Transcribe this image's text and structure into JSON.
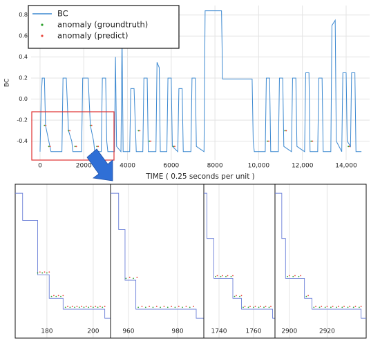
{
  "chart_data": [
    {
      "type": "line",
      "ylabel": "BC",
      "xlabel": "TIME ( 0.25 seconds per unit )",
      "grid": true,
      "legend": "upper left",
      "xlim": [
        -410,
        15075
      ],
      "ylim": [
        -0.58,
        0.89
      ],
      "xticks": [
        0,
        2000,
        4000,
        6000,
        8000,
        {
          "value": 10000,
          "label": "10,000"
        },
        {
          "value": 12000,
          "label": "12,000"
        },
        {
          "value": 14000,
          "label": "14,000"
        }
      ],
      "yticks": [
        -0.4,
        -0.2,
        {
          "value": 0,
          "label": "0.0"
        },
        0.2,
        0.4,
        0.6,
        0.8
      ],
      "series": [
        {
          "name": "BC",
          "kind": "line",
          "color": "#3b88d0",
          "x": [
            0,
            50,
            100,
            200,
            250,
            400,
            500,
            1000,
            1050,
            1200,
            1300,
            1450,
            1500,
            1900,
            1950,
            2200,
            2300,
            2450,
            2500,
            2800,
            2850,
            3000,
            3050,
            3100,
            3400,
            3450,
            3500,
            3700,
            3750,
            3800,
            4100,
            4150,
            4300,
            4400,
            4700,
            4750,
            4900,
            4950,
            5300,
            5350,
            5450,
            5500,
            5800,
            5850,
            6000,
            6050,
            6300,
            6350,
            6500,
            6550,
            6900,
            6950,
            7100,
            7150,
            7500,
            7550,
            8300,
            8350,
            9700,
            9750,
            9800,
            10300,
            10350,
            10500,
            10550,
            10900,
            10950,
            11100,
            11150,
            11500,
            11550,
            11700,
            11750,
            12100,
            12150,
            12300,
            12350,
            12700,
            12750,
            12900,
            12950,
            13300,
            13350,
            13500,
            13550,
            13800,
            13850,
            14000,
            14050,
            14200,
            14250,
            14400,
            14450,
            14700
          ],
          "values": [
            -0.5,
            0.0,
            0.2,
            0.2,
            -0.25,
            -0.4,
            -0.5,
            -0.5,
            0.2,
            0.2,
            -0.3,
            -0.4,
            -0.5,
            -0.5,
            0.2,
            0.2,
            -0.25,
            -0.4,
            -0.5,
            -0.5,
            0.2,
            0.2,
            -0.4,
            -0.5,
            -0.5,
            0.4,
            -0.45,
            -0.5,
            0.6,
            -0.5,
            -0.5,
            0.1,
            0.1,
            -0.5,
            -0.5,
            0.2,
            0.2,
            -0.5,
            -0.5,
            0.35,
            0.3,
            -0.5,
            -0.5,
            0.2,
            0.2,
            -0.45,
            -0.5,
            0.1,
            0.1,
            -0.5,
            -0.5,
            0.2,
            0.2,
            -0.45,
            -0.5,
            0.84,
            0.84,
            0.19,
            0.19,
            -0.4,
            -0.5,
            -0.5,
            0.2,
            0.2,
            -0.5,
            -0.5,
            0.2,
            0.2,
            -0.45,
            -0.5,
            0.2,
            0.2,
            -0.45,
            -0.5,
            0.25,
            0.25,
            -0.5,
            -0.5,
            0.2,
            0.2,
            -0.5,
            -0.5,
            0.7,
            0.75,
            -0.4,
            -0.5,
            0.25,
            0.25,
            -0.4,
            -0.45,
            0.25,
            0.25,
            -0.5,
            -0.5
          ]
        },
        {
          "name": "anomaly (groundtruth)",
          "kind": "scatter",
          "color": "#2ca02c",
          "x": [
            200,
            400,
            1300,
            1600,
            2300,
            2600,
            4500,
            5000,
            6100,
            10400,
            11200,
            12400,
            14100
          ],
          "values": [
            -0.25,
            -0.45,
            -0.3,
            -0.45,
            -0.25,
            -0.45,
            -0.3,
            -0.4,
            -0.45,
            -0.4,
            -0.3,
            -0.4,
            -0.45
          ]
        },
        {
          "name": "anomaly (predict)",
          "kind": "scatter",
          "color": "#e8443a",
          "x": [
            260,
            460,
            1360,
            1660,
            2360,
            2660,
            4560,
            5060,
            6160,
            10460,
            11260,
            12460,
            14160
          ],
          "values": [
            -0.25,
            -0.45,
            -0.3,
            -0.45,
            -0.25,
            -0.45,
            -0.3,
            -0.4,
            -0.45,
            -0.4,
            -0.3,
            -0.4,
            -0.45
          ]
        }
      ]
    },
    {
      "type": "line",
      "grid": true,
      "xlim": [
        166.3,
        207.5
      ],
      "ylim": [
        -0.6,
        0.25
      ],
      "xticks": [
        180,
        200
      ],
      "series": [
        {
          "kind": "line",
          "color": "#6a7fd8",
          "x": [
            166.3,
            169.5,
            169.5,
            176,
            176,
            181,
            181,
            187,
            187,
            205,
            205,
            207.5
          ],
          "values": [
            0.2,
            0.2,
            0.05,
            0.05,
            -0.25,
            -0.25,
            -0.38,
            -0.38,
            -0.44,
            -0.44,
            -0.49,
            -0.49
          ]
        },
        {
          "kind": "scatter",
          "color": "#2ca02c",
          "x": [
            176,
            178,
            180,
            182,
            184,
            186,
            188,
            190,
            192,
            194,
            196,
            198,
            200,
            202,
            204
          ],
          "values": [
            -0.24,
            -0.24,
            -0.24,
            -0.37,
            -0.37,
            -0.37,
            -0.43,
            -0.43,
            -0.43,
            -0.43,
            -0.43,
            -0.43,
            -0.43,
            -0.43,
            -0.43
          ]
        },
        {
          "kind": "scatter",
          "color": "#e8443a",
          "x": [
            177,
            179,
            181,
            183,
            185,
            187,
            189,
            191,
            193,
            195,
            197,
            199,
            201,
            203,
            205
          ],
          "values": [
            -0.235,
            -0.235,
            -0.235,
            -0.365,
            -0.365,
            -0.365,
            -0.425,
            -0.425,
            -0.425,
            -0.425,
            -0.425,
            -0.425,
            -0.425,
            -0.425,
            -0.425
          ]
        }
      ]
    },
    {
      "type": "line",
      "grid": true,
      "xlim": [
        952.7,
        990.7
      ],
      "ylim": [
        -0.6,
        0.25
      ],
      "xticks": [
        960,
        980
      ],
      "series": [
        {
          "kind": "line",
          "color": "#6a7fd8",
          "x": [
            952.7,
            956,
            956,
            958.6,
            958.6,
            963,
            963,
            987.6,
            987.6,
            990.7
          ],
          "values": [
            0.2,
            0.2,
            0.0,
            0.0,
            -0.28,
            -0.28,
            -0.44,
            -0.44,
            -0.49,
            -0.49
          ]
        },
        {
          "kind": "scatter",
          "color": "#2ca02c",
          "x": [
            959,
            962,
            964,
            967,
            970,
            973,
            976,
            979,
            982,
            985
          ],
          "values": [
            -0.27,
            -0.27,
            -0.43,
            -0.43,
            -0.43,
            -0.43,
            -0.43,
            -0.43,
            -0.43,
            -0.43
          ]
        },
        {
          "kind": "scatter",
          "color": "#e8443a",
          "x": [
            960.5,
            963.5,
            965.5,
            968.5,
            971.5,
            974.5,
            977.5,
            980.5,
            983.5,
            986.5
          ],
          "values": [
            -0.265,
            -0.265,
            -0.425,
            -0.425,
            -0.425,
            -0.425,
            -0.425,
            -0.425,
            -0.425,
            -0.425
          ]
        }
      ]
    },
    {
      "type": "line",
      "grid": true,
      "xlim": [
        1731.2,
        1772.4
      ],
      "ylim": [
        -0.6,
        0.25
      ],
      "xticks": [
        1740,
        1760
      ],
      "series": [
        {
          "kind": "line",
          "color": "#6a7fd8",
          "x": [
            1731.2,
            1733,
            1733,
            1737,
            1737,
            1748,
            1748,
            1753,
            1753,
            1771,
            1771,
            1772.4
          ],
          "values": [
            0.2,
            0.2,
            -0.05,
            -0.05,
            -0.27,
            -0.27,
            -0.38,
            -0.38,
            -0.44,
            -0.44,
            -0.49,
            -0.49
          ]
        },
        {
          "kind": "scatter",
          "color": "#2ca02c",
          "x": [
            1738,
            1741,
            1744,
            1747,
            1749,
            1752,
            1754,
            1757,
            1760,
            1763,
            1766,
            1769
          ],
          "values": [
            -0.26,
            -0.26,
            -0.26,
            -0.26,
            -0.37,
            -0.37,
            -0.43,
            -0.43,
            -0.43,
            -0.43,
            -0.43,
            -0.43
          ]
        },
        {
          "kind": "scatter",
          "color": "#e8443a",
          "x": [
            1739,
            1742,
            1745,
            1748,
            1750,
            1753,
            1755,
            1758,
            1761,
            1764,
            1767,
            1770
          ],
          "values": [
            -0.255,
            -0.255,
            -0.255,
            -0.255,
            -0.365,
            -0.365,
            -0.425,
            -0.425,
            -0.425,
            -0.425,
            -0.425,
            -0.425
          ]
        }
      ]
    },
    {
      "type": "line",
      "grid": true,
      "xlim": [
        2892.4,
        2940.7
      ],
      "ylim": [
        -0.6,
        0.25
      ],
      "xticks": [
        2900,
        2920
      ],
      "series": [
        {
          "kind": "line",
          "color": "#6a7fd8",
          "x": [
            2892.4,
            2896,
            2896,
            2898,
            2898,
            2908,
            2908,
            2912,
            2912,
            2938,
            2938,
            2940.7
          ],
          "values": [
            0.2,
            0.2,
            -0.05,
            -0.05,
            -0.27,
            -0.27,
            -0.38,
            -0.38,
            -0.44,
            -0.44,
            -0.49,
            -0.49
          ]
        },
        {
          "kind": "scatter",
          "color": "#2ca02c",
          "x": [
            2899,
            2902,
            2905,
            2909,
            2913,
            2916,
            2919,
            2922,
            2925,
            2928,
            2931,
            2934,
            2937
          ],
          "values": [
            -0.26,
            -0.26,
            -0.26,
            -0.37,
            -0.43,
            -0.43,
            -0.43,
            -0.43,
            -0.43,
            -0.43,
            -0.43,
            -0.43,
            -0.43
          ]
        },
        {
          "kind": "scatter",
          "color": "#e8443a",
          "x": [
            2900,
            2903,
            2906,
            2910,
            2914,
            2917,
            2920,
            2923,
            2926,
            2929,
            2932,
            2935,
            2938
          ],
          "values": [
            -0.255,
            -0.255,
            -0.255,
            -0.365,
            -0.425,
            -0.425,
            -0.425,
            -0.425,
            -0.425,
            -0.425,
            -0.425,
            -0.425,
            -0.425
          ]
        }
      ]
    }
  ]
}
